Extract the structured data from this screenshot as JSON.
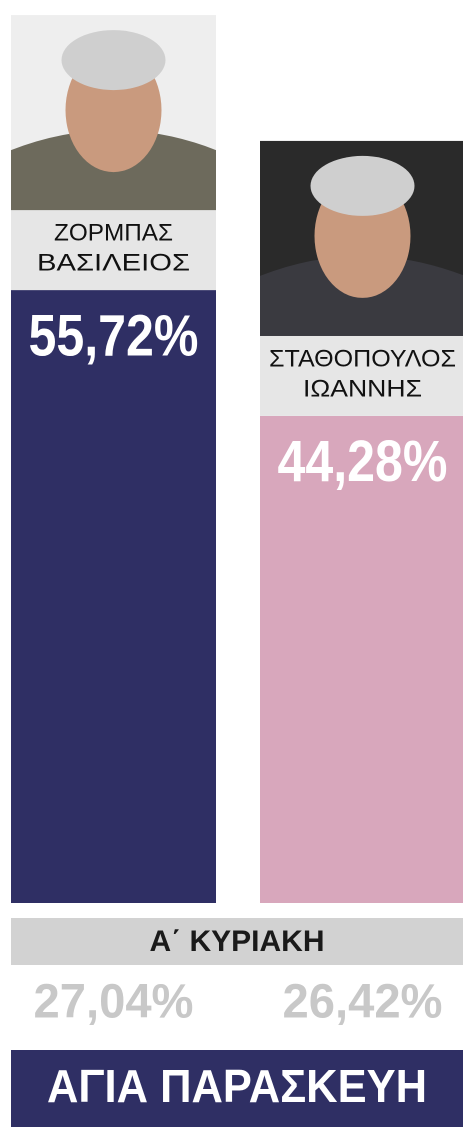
{
  "chart_data": {
    "type": "bar",
    "categories": [
      [
        "ΖΟΡΜΠΑΣ",
        "ΒΑΣΙΛΕΙΟΣ"
      ],
      [
        "ΣΤΑΘΟΠΟΥΛΟΣ",
        "ΙΩΑΝΝΗΣ"
      ]
    ],
    "values": [
      55.72,
      44.28
    ],
    "value_labels": [
      "55,72%",
      "44,28%"
    ],
    "colors": [
      "#2f2f64",
      "#d8a7bc"
    ],
    "first_round": {
      "label": "Α΄ ΚΥΡΙΑΚΗ",
      "values": [
        27.04,
        26.42
      ],
      "value_labels": [
        "27,04%",
        "26,42%"
      ]
    },
    "title": "ΑΓΙΑ ΠΑΡΑΣΚΕΥΗ"
  }
}
